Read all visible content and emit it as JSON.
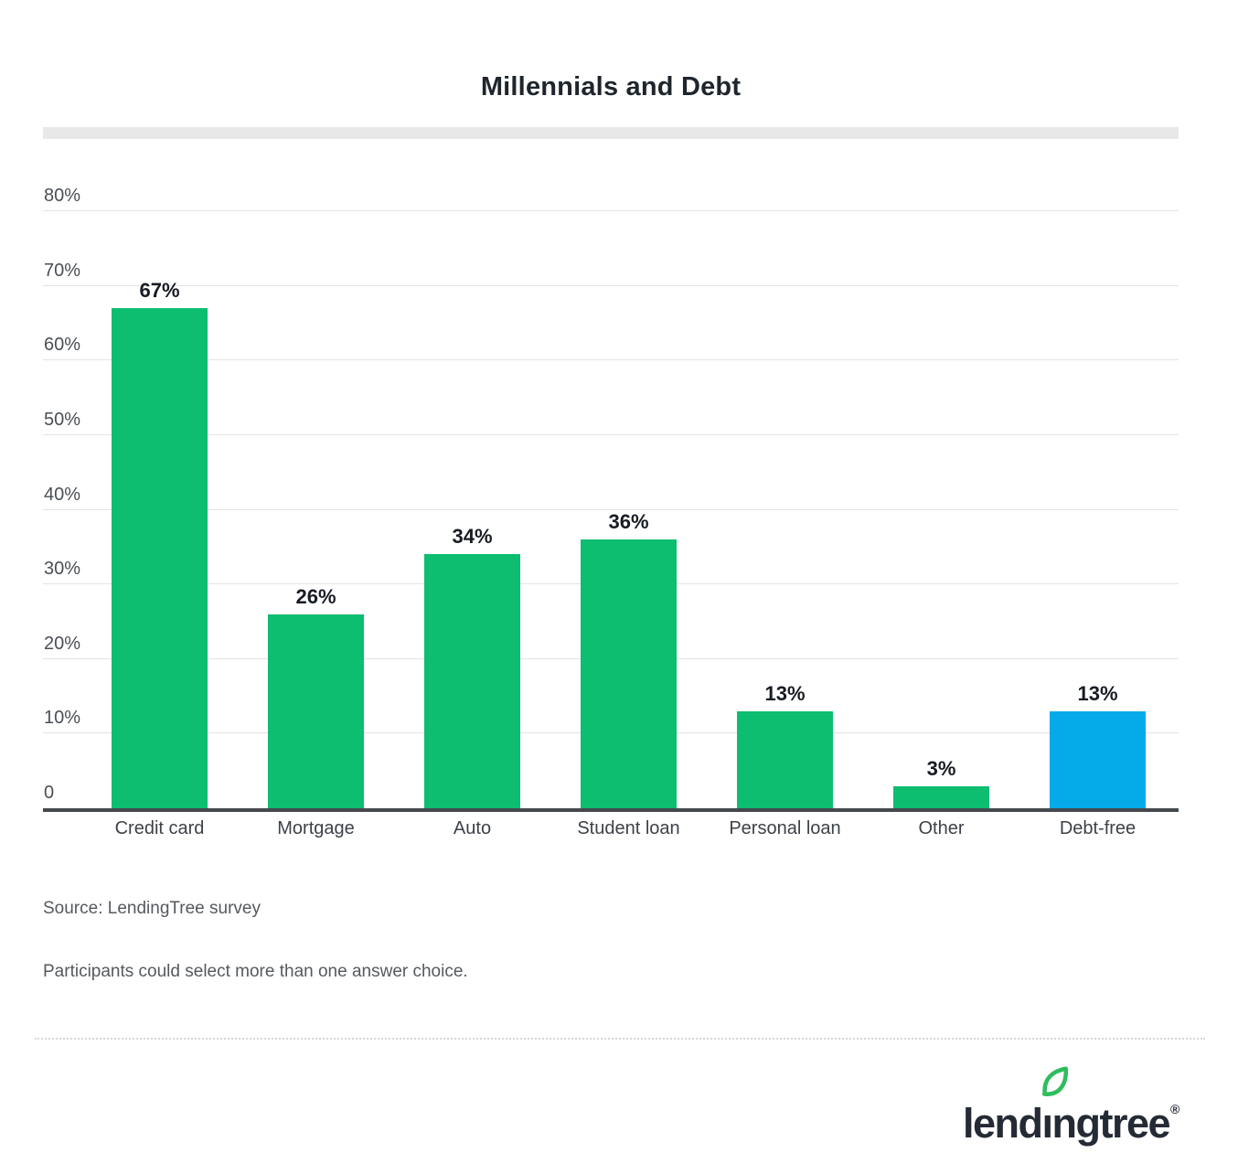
{
  "title": "Millennials and Debt",
  "chart_data": {
    "type": "bar",
    "title": "Millennials and Debt",
    "categories": [
      "Credit card",
      "Mortgage",
      "Auto",
      "Student loan",
      "Personal loan",
      "Other",
      "Debt-free"
    ],
    "values": [
      67,
      26,
      34,
      36,
      13,
      3,
      13
    ],
    "value_labels": [
      "67%",
      "26%",
      "34%",
      "36%",
      "13%",
      "3%",
      "13%"
    ],
    "bar_colors": [
      "#0dbd70",
      "#0dbd70",
      "#0dbd70",
      "#0dbd70",
      "#0dbd70",
      "#0dbd70",
      "#05aae8"
    ],
    "xlabel": "",
    "ylabel": "",
    "ylim": [
      0,
      80
    ],
    "yticks": [
      {
        "value": 0,
        "label": "0"
      },
      {
        "value": 10,
        "label": "10%"
      },
      {
        "value": 20,
        "label": "20%"
      },
      {
        "value": 30,
        "label": "30%"
      },
      {
        "value": 40,
        "label": "40%"
      },
      {
        "value": 50,
        "label": "50%"
      },
      {
        "value": 60,
        "label": "60%"
      },
      {
        "value": 70,
        "label": "70%"
      },
      {
        "value": 80,
        "label": "80%"
      }
    ],
    "grid": true,
    "legend": false
  },
  "notes": {
    "source": "Source: LendingTree survey",
    "participants": "Participants could select more than one answer choice."
  },
  "logo": {
    "brand": "LendingTree",
    "wordmark": "lendıngtree",
    "registered": "®",
    "text_color": "#252b35",
    "leaf_color": "#2ebd5f"
  },
  "colors": {
    "bar_green": "#0dbd70",
    "bar_blue": "#05aae8",
    "gridline": "#e3e3e3",
    "axis_line": "#45494e",
    "title_band": "#e8e8e8"
  }
}
